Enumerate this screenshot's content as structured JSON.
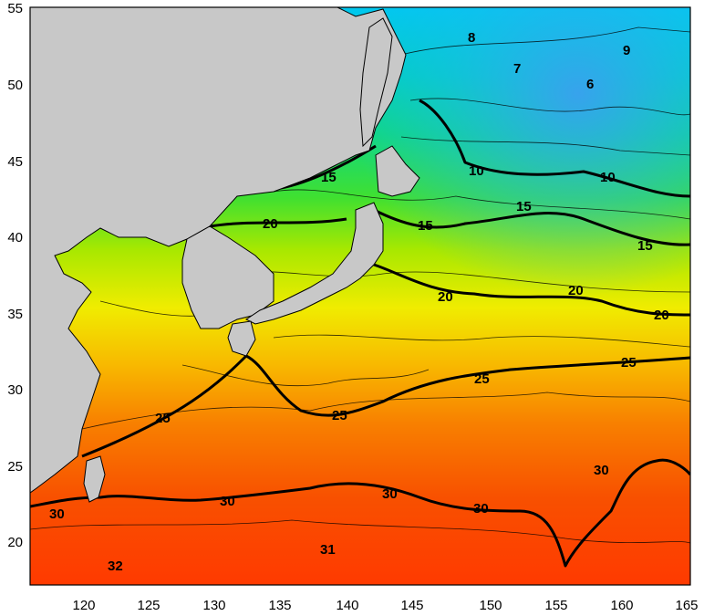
{
  "map": {
    "x_ticks": [
      "120",
      "125",
      "130",
      "135",
      "140",
      "145",
      "150",
      "155",
      "160",
      "165"
    ],
    "y_ticks": [
      "55",
      "50",
      "45",
      "40",
      "35",
      "30",
      "25",
      "20"
    ],
    "land_color": "#c8c8c8",
    "contour_labels": [
      {
        "text": "8"
      },
      {
        "text": "9"
      },
      {
        "text": "7"
      },
      {
        "text": "6"
      },
      {
        "text": "10"
      },
      {
        "text": "10"
      },
      {
        "text": "15"
      },
      {
        "text": "15"
      },
      {
        "text": "15"
      },
      {
        "text": "15"
      },
      {
        "text": "20"
      },
      {
        "text": "20"
      },
      {
        "text": "20"
      },
      {
        "text": "20"
      },
      {
        "text": "25"
      },
      {
        "text": "25"
      },
      {
        "text": "25"
      },
      {
        "text": "25"
      },
      {
        "text": "30"
      },
      {
        "text": "30"
      },
      {
        "text": "30"
      },
      {
        "text": "30"
      },
      {
        "text": "30"
      },
      {
        "text": "31"
      },
      {
        "text": "32"
      }
    ]
  }
}
